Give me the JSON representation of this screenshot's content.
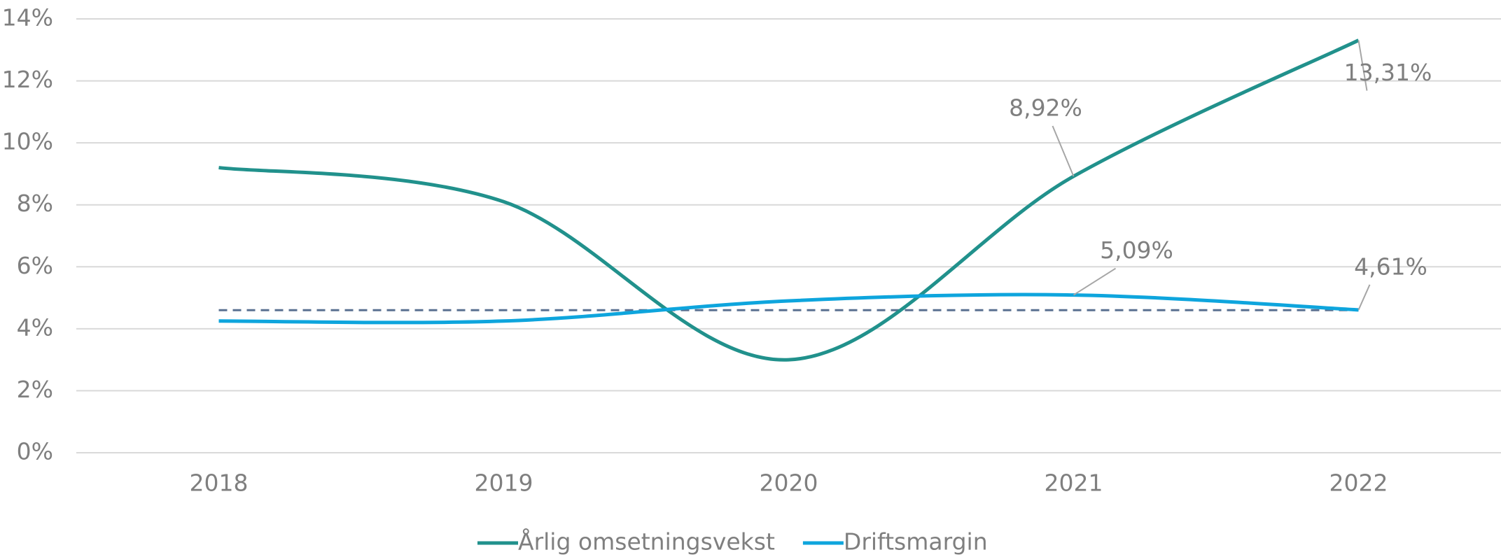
{
  "chart_data": {
    "type": "line",
    "categories": [
      "2018",
      "2019",
      "2020",
      "2021",
      "2022"
    ],
    "series": [
      {
        "name": "Årlig omsetningsvekst",
        "color": "#21918c",
        "values": [
          9.2,
          8.1,
          3.0,
          8.92,
          13.31
        ],
        "value_labels": [
          null,
          null,
          null,
          "8,92%",
          "13,31%"
        ]
      },
      {
        "name": "Driftsmargin",
        "color": "#0ea5dd",
        "values": [
          4.25,
          4.25,
          4.9,
          5.09,
          4.61
        ],
        "value_labels": [
          null,
          null,
          null,
          "5,09%",
          "4,61%"
        ]
      }
    ],
    "reference_line": {
      "value": 4.6,
      "color": "#5a7191",
      "dashed": true
    },
    "ylim": [
      0,
      14
    ],
    "yticks": [
      {
        "value": 0,
        "label": "0%"
      },
      {
        "value": 2,
        "label": "2%"
      },
      {
        "value": 4,
        "label": "4%"
      },
      {
        "value": 6,
        "label": "6%"
      },
      {
        "value": 8,
        "label": "8%"
      },
      {
        "value": 10,
        "label": "10%"
      },
      {
        "value": 12,
        "label": "12%"
      },
      {
        "value": 14,
        "label": "14%"
      }
    ],
    "grid": true,
    "smooth": true,
    "legend": "bottom"
  }
}
